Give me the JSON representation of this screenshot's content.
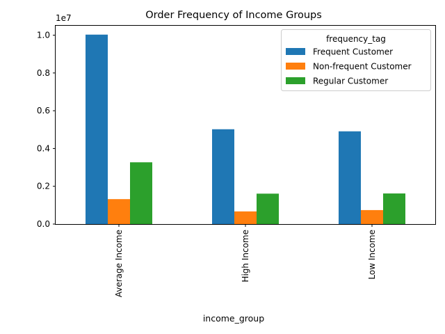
{
  "chart_data": {
    "type": "bar",
    "title": "Order Frequency of Income Groups",
    "xlabel": "income_group",
    "ylabel": "",
    "y_offset_label": "1e7",
    "ylim": [
      0,
      10500000
    ],
    "y_ticks": [
      0,
      2000000,
      4000000,
      6000000,
      8000000,
      10000000
    ],
    "y_tick_labels": [
      "0.0",
      "0.2",
      "0.4",
      "0.6",
      "0.8",
      "1.0"
    ],
    "categories": [
      "Average Income",
      "High Income",
      "Low Income"
    ],
    "legend": {
      "title": "frequency_tag",
      "placement": "top-right"
    },
    "grid": false,
    "series": [
      {
        "name": "Frequent Customer",
        "color": "#1f77b4",
        "values": [
          10030000,
          5020000,
          4910000
        ]
      },
      {
        "name": "Non-frequent Customer",
        "color": "#ff7f0e",
        "values": [
          1320000,
          670000,
          740000
        ]
      },
      {
        "name": "Regular Customer",
        "color": "#2ca02c",
        "values": [
          3270000,
          1610000,
          1620000
        ]
      }
    ]
  }
}
